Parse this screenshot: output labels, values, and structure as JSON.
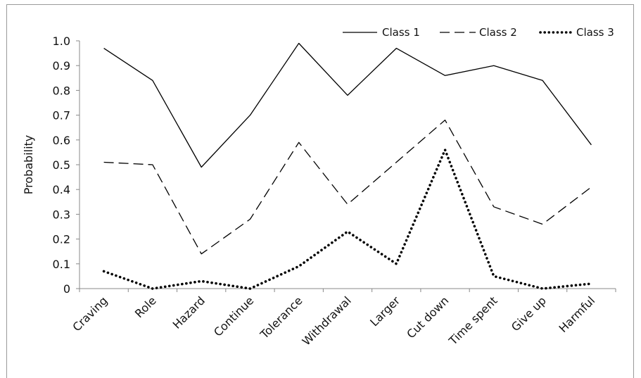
{
  "chart_data": {
    "type": "line",
    "title": "",
    "xlabel": "",
    "ylabel": "Probability",
    "ylim": [
      0,
      1.0
    ],
    "yticks": [
      "0",
      "0.1",
      "0.2",
      "0.3",
      "0.4",
      "0.5",
      "0.6",
      "0.7",
      "0.8",
      "0.9",
      "1.0"
    ],
    "grid": false,
    "legend_position": "top-right",
    "categories": [
      "Craving",
      "Role",
      "Hazard",
      "Continue",
      "Tolerance",
      "Withdrawal",
      "Larger",
      "Cut down",
      "Time spent",
      "Give up",
      "Harmful"
    ],
    "series": [
      {
        "name": "Class 1",
        "style": "solid",
        "values": [
          0.97,
          0.84,
          0.49,
          0.7,
          0.99,
          0.78,
          0.97,
          0.86,
          0.9,
          0.84,
          0.58
        ]
      },
      {
        "name": "Class 2",
        "style": "dashed",
        "values": [
          0.51,
          0.5,
          0.14,
          0.28,
          0.59,
          0.34,
          0.51,
          0.68,
          0.33,
          0.26,
          0.41
        ]
      },
      {
        "name": "Class 3",
        "style": "dotted",
        "values": [
          0.07,
          0.0,
          0.03,
          0.0,
          0.09,
          0.23,
          0.1,
          0.56,
          0.05,
          0.0,
          0.02
        ]
      }
    ]
  }
}
